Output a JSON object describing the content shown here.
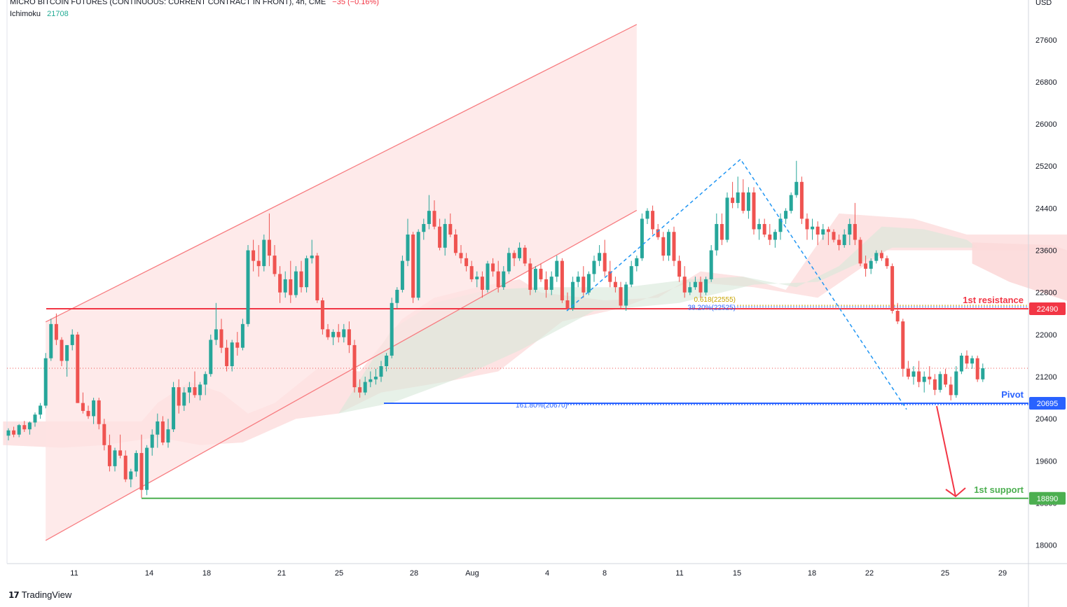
{
  "header": {
    "symbol": "MICRO BITCOIN FUTURES (CONTINUOUS: CURRENT CONTRACT IN FRONT), 4h, CME",
    "change": "−35 (−0.16%)",
    "indicator_name": "Ichimoku",
    "indicator_value": "21708"
  },
  "footer": {
    "brand": "TradingView"
  },
  "colors": {
    "up": "#22ab94",
    "candle_up": "#26a69a",
    "down": "#ef5350",
    "channel": "#f77c80",
    "resistance": "#f23645",
    "pivot": "#2962ff",
    "support": "#4caf50",
    "fib": "#c8a400",
    "fib_ext": "#2962ff",
    "zigzag": "#2196f3",
    "cloud_green": "#d7e8d8",
    "cloud_red": "#fcd9d9"
  },
  "chart_data": {
    "type": "candlestick",
    "currency": "USD",
    "ylim": [
      17650,
      28000
    ],
    "y_ticks": [
      18000,
      18800,
      19600,
      20400,
      21200,
      22000,
      22800,
      23600,
      24400,
      25200,
      26000,
      26800,
      27600
    ],
    "x_ticks": [
      "11",
      "14",
      "18",
      "21",
      "25",
      "28",
      "Aug",
      "4",
      "8",
      "11",
      "15",
      "18",
      "22",
      "25",
      "29"
    ],
    "last_price": 21360,
    "levels": [
      {
        "name": "1st resistance",
        "value": 22490,
        "badge": "22490"
      },
      {
        "name": "Pivot",
        "value": 20695,
        "badge": "20695"
      },
      {
        "name": "1st support",
        "value": 18890,
        "badge": "18890"
      }
    ],
    "annotations": [
      {
        "text": "0.618(22555)",
        "value": 22555
      },
      {
        "text": "38.20%(22525)",
        "value": 22525
      },
      {
        "text": "161.80%(20670)",
        "value": 20670
      }
    ],
    "channel": {
      "upper": [
        [
          0,
          22240
        ],
        [
          111,
          27890
        ]
      ],
      "lower": [
        [
          0,
          18090
        ],
        [
          111,
          24360
        ]
      ]
    },
    "zigzag": [
      [
        71,
        22450
      ],
      [
        94,
        25330
      ],
      [
        111,
        20580
      ]
    ],
    "target_arrow": {
      "from": 20695,
      "to": 18900
    },
    "candles": [
      [
        20080,
        20220,
        19990,
        20180
      ],
      [
        20180,
        20250,
        20050,
        20100
      ],
      [
        20100,
        20300,
        20050,
        20280
      ],
      [
        20280,
        20360,
        20150,
        20200
      ],
      [
        20200,
        20350,
        20100,
        20330
      ],
      [
        20330,
        20520,
        20250,
        20480
      ],
      [
        20480,
        20700,
        20400,
        20650
      ],
      [
        20650,
        21650,
        20600,
        21550
      ],
      [
        21550,
        22300,
        21500,
        22200
      ],
      [
        22200,
        22400,
        21800,
        21900
      ],
      [
        21900,
        21950,
        21400,
        21500
      ],
      [
        21500,
        21800,
        21200,
        21800
      ],
      [
        21800,
        22100,
        21700,
        22000
      ],
      [
        22000,
        22050,
        20700,
        20700
      ],
      [
        20700,
        20900,
        20500,
        20550
      ],
      [
        20550,
        20650,
        20400,
        20450
      ],
      [
        20450,
        20800,
        20300,
        20750
      ],
      [
        20750,
        20800,
        20200,
        20300
      ],
      [
        20300,
        20400,
        19800,
        19900
      ],
      [
        19900,
        20100,
        19400,
        19500
      ],
      [
        19500,
        19850,
        19400,
        19800
      ],
      [
        19800,
        20100,
        19650,
        19700
      ],
      [
        19700,
        19800,
        19200,
        19250
      ],
      [
        19250,
        19450,
        19100,
        19400
      ],
      [
        19400,
        19800,
        19300,
        19750
      ],
      [
        19750,
        20100,
        18900,
        19050
      ],
      [
        19050,
        19900,
        18950,
        19850
      ],
      [
        19850,
        20200,
        19700,
        20100
      ],
      [
        20100,
        20500,
        19850,
        20350
      ],
      [
        20350,
        20450,
        19900,
        19950
      ],
      [
        19950,
        20400,
        19850,
        20200
      ],
      [
        20200,
        21100,
        20150,
        21000
      ],
      [
        21000,
        21150,
        20500,
        20650
      ],
      [
        20650,
        21000,
        20550,
        20900
      ],
      [
        20900,
        21100,
        20700,
        21000
      ],
      [
        21000,
        21300,
        20800,
        20850
      ],
      [
        20850,
        21100,
        20750,
        21050
      ],
      [
        21050,
        21300,
        20850,
        21250
      ],
      [
        21250,
        22000,
        21200,
        21900
      ],
      [
        21900,
        22600,
        21800,
        22100
      ],
      [
        22100,
        22300,
        21650,
        21750
      ],
      [
        21750,
        21900,
        21300,
        21400
      ],
      [
        21400,
        21900,
        21300,
        21850
      ],
      [
        21850,
        22050,
        21600,
        21750
      ],
      [
        21750,
        22300,
        21700,
        22200
      ],
      [
        22200,
        23700,
        22150,
        23600
      ],
      [
        23600,
        23800,
        23200,
        23400
      ],
      [
        23400,
        23700,
        23100,
        23300
      ],
      [
        23300,
        23900,
        23200,
        23800
      ],
      [
        23800,
        24300,
        23300,
        23500
      ],
      [
        23500,
        23700,
        23100,
        23150
      ],
      [
        23150,
        23300,
        22600,
        22800
      ],
      [
        22800,
        23200,
        22700,
        23050
      ],
      [
        23050,
        23400,
        22600,
        22750
      ],
      [
        22750,
        23300,
        22700,
        23200
      ],
      [
        23200,
        23400,
        22800,
        22900
      ],
      [
        22900,
        23500,
        22800,
        23450
      ],
      [
        23450,
        23800,
        23350,
        23500
      ],
      [
        23500,
        23550,
        22600,
        22650
      ],
      [
        22650,
        22700,
        22000,
        22100
      ],
      [
        22100,
        22200,
        21900,
        21950
      ],
      [
        21950,
        22100,
        21800,
        22050
      ],
      [
        22050,
        22200,
        21850,
        21950
      ],
      [
        21950,
        22200,
        21850,
        22100
      ],
      [
        22100,
        22250,
        21650,
        21800
      ],
      [
        21800,
        21900,
        20900,
        21000
      ],
      [
        21000,
        21150,
        20800,
        20900
      ],
      [
        20900,
        21200,
        20850,
        21100
      ],
      [
        21100,
        21300,
        21000,
        21150
      ],
      [
        21150,
        21350,
        21050,
        21200
      ],
      [
        21200,
        21500,
        21100,
        21400
      ],
      [
        21400,
        21650,
        21300,
        21600
      ],
      [
        21600,
        22700,
        21550,
        22600
      ],
      [
        22600,
        22900,
        22500,
        22850
      ],
      [
        22850,
        23500,
        22800,
        23400
      ],
      [
        23400,
        24200,
        23300,
        23900
      ],
      [
        23900,
        23950,
        22600,
        22700
      ],
      [
        22700,
        24000,
        22650,
        23950
      ],
      [
        23950,
        24200,
        23800,
        24100
      ],
      [
        24100,
        24650,
        24000,
        24350
      ],
      [
        24350,
        24550,
        24000,
        24050
      ],
      [
        24050,
        24200,
        23600,
        23650
      ],
      [
        23650,
        24200,
        23500,
        24100
      ],
      [
        24100,
        24300,
        23850,
        23900
      ],
      [
        23900,
        24000,
        23500,
        23550
      ],
      [
        23550,
        23700,
        23350,
        23450
      ],
      [
        23450,
        23550,
        23200,
        23300
      ],
      [
        23300,
        23400,
        23000,
        23050
      ],
      [
        23050,
        23200,
        22900,
        23100
      ],
      [
        23100,
        23200,
        22700,
        22850
      ],
      [
        22850,
        23400,
        22800,
        23350
      ],
      [
        23350,
        23450,
        23100,
        23200
      ],
      [
        23200,
        23400,
        22800,
        22900
      ],
      [
        22900,
        23300,
        22850,
        23200
      ],
      [
        23200,
        23650,
        23150,
        23550
      ],
      [
        23550,
        23600,
        23300,
        23450
      ],
      [
        23450,
        23750,
        23400,
        23650
      ],
      [
        23650,
        23700,
        23300,
        23350
      ],
      [
        23350,
        23450,
        22750,
        22850
      ],
      [
        22850,
        23300,
        22800,
        23250
      ],
      [
        23250,
        23350,
        23000,
        23050
      ],
      [
        23050,
        23200,
        22700,
        22850
      ],
      [
        22850,
        23200,
        22750,
        23100
      ],
      [
        23100,
        23500,
        23000,
        23400
      ],
      [
        23400,
        23450,
        22600,
        22650
      ],
      [
        22650,
        22800,
        22450,
        22500
      ],
      [
        22500,
        23100,
        22450,
        23000
      ],
      [
        23000,
        23200,
        22900,
        23100
      ],
      [
        23100,
        23300,
        22700,
        22800
      ],
      [
        22800,
        23200,
        22750,
        23150
      ],
      [
        23150,
        23500,
        23000,
        23400
      ],
      [
        23400,
        23700,
        23300,
        23550
      ],
      [
        23550,
        23800,
        23100,
        23200
      ],
      [
        23200,
        23400,
        22900,
        23000
      ],
      [
        23000,
        23100,
        22800,
        22900
      ],
      [
        22900,
        23000,
        22500,
        22550
      ],
      [
        22550,
        23000,
        22450,
        22950
      ],
      [
        22950,
        23400,
        22900,
        23300
      ],
      [
        23300,
        23500,
        23200,
        23450
      ],
      [
        23450,
        24300,
        23400,
        24200
      ],
      [
        24200,
        24400,
        24100,
        24350
      ],
      [
        24350,
        24450,
        23900,
        24000
      ],
      [
        24000,
        24100,
        23800,
        23850
      ],
      [
        23850,
        23950,
        23400,
        23500
      ],
      [
        23500,
        24000,
        23400,
        23950
      ],
      [
        23950,
        24050,
        23300,
        23400
      ],
      [
        23400,
        23500,
        23000,
        23100
      ],
      [
        23100,
        23300,
        22700,
        22800
      ],
      [
        22800,
        23000,
        22750,
        22900
      ],
      [
        22900,
        23100,
        22850,
        23000
      ],
      [
        23000,
        23100,
        22700,
        22800
      ],
      [
        22800,
        23100,
        22750,
        23050
      ],
      [
        23050,
        23700,
        23000,
        23600
      ],
      [
        23600,
        24300,
        23500,
        24100
      ],
      [
        24100,
        24300,
        23700,
        23800
      ],
      [
        23800,
        24700,
        23750,
        24600
      ],
      [
        24600,
        24900,
        24400,
        24500
      ],
      [
        24500,
        25000,
        24400,
        24700
      ],
      [
        24700,
        24950,
        24300,
        24350
      ],
      [
        24350,
        24800,
        24200,
        24700
      ],
      [
        24700,
        24800,
        23900,
        24000
      ],
      [
        24000,
        24200,
        23800,
        24100
      ],
      [
        24100,
        24200,
        23850,
        23900
      ],
      [
        23900,
        24100,
        23700,
        23800
      ],
      [
        23800,
        24000,
        23650,
        23950
      ],
      [
        23950,
        24300,
        23800,
        24200
      ],
      [
        24200,
        24400,
        24100,
        24350
      ],
      [
        24350,
        24700,
        24300,
        24650
      ],
      [
        24650,
        25300,
        24600,
        24900
      ],
      [
        24900,
        25000,
        24100,
        24200
      ],
      [
        24200,
        24300,
        23800,
        24000
      ],
      [
        24000,
        24200,
        23800,
        24050
      ],
      [
        24050,
        24150,
        23700,
        23900
      ],
      [
        23900,
        24100,
        23800,
        24000
      ],
      [
        24000,
        24050,
        23700,
        23950
      ],
      [
        23950,
        24000,
        23750,
        23800
      ],
      [
        23800,
        23900,
        23600,
        23700
      ],
      [
        23700,
        24000,
        23650,
        23900
      ],
      [
        23900,
        24200,
        23700,
        24100
      ],
      [
        24100,
        24500,
        23700,
        23800
      ],
      [
        23800,
        23850,
        23300,
        23350
      ],
      [
        23350,
        23500,
        23100,
        23250
      ],
      [
        23250,
        23450,
        23150,
        23400
      ],
      [
        23400,
        23600,
        23350,
        23550
      ],
      [
        23550,
        23600,
        23400,
        23450
      ],
      [
        23450,
        23500,
        23250,
        23300
      ],
      [
        23300,
        23350,
        22400,
        22450
      ],
      [
        22450,
        22600,
        22200,
        22250
      ],
      [
        22250,
        22300,
        21200,
        21350
      ],
      [
        21350,
        21500,
        21150,
        21200
      ],
      [
        21200,
        21400,
        21050,
        21300
      ],
      [
        21300,
        21500,
        21000,
        21100
      ],
      [
        21100,
        21300,
        20900,
        21200
      ],
      [
        21200,
        21400,
        21050,
        21150
      ],
      [
        21150,
        21250,
        20850,
        20950
      ],
      [
        20950,
        21300,
        20900,
        21250
      ],
      [
        21250,
        21350,
        21000,
        21050
      ],
      [
        21050,
        21200,
        20750,
        20850
      ],
      [
        20850,
        21400,
        20800,
        21300
      ],
      [
        21300,
        21650,
        21250,
        21600
      ],
      [
        21600,
        21700,
        21350,
        21450
      ],
      [
        21450,
        21600,
        21350,
        21550
      ],
      [
        21550,
        21600,
        21100,
        21150
      ],
      [
        21150,
        21450,
        21100,
        21360
      ]
    ]
  }
}
